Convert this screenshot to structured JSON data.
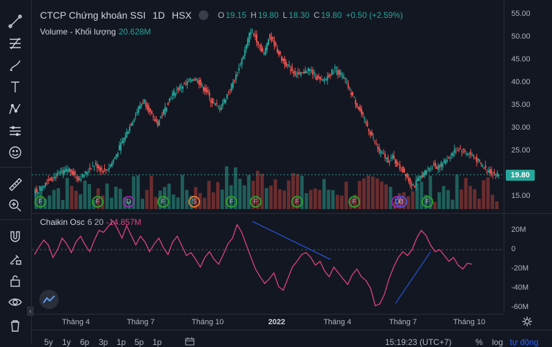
{
  "legend": {
    "title": "CTCP Chứng khoán SSI",
    "interval": "1D",
    "exchange": "HSX",
    "o_label": "O",
    "o_value": "19.15",
    "h_label": "H",
    "h_value": "19.80",
    "l_label": "L",
    "l_value": "18.30",
    "c_label": "C",
    "c_value": "19.80",
    "change": "+0.50 (+2.59%)"
  },
  "volume_legend": {
    "label": "Volume - Khối lượng",
    "value": "20.628M"
  },
  "osc_legend": {
    "label": "Chaikin Osc",
    "params": "6 20",
    "value": "-14.857M"
  },
  "price_axis": [
    "55.00",
    "50.00",
    "45.00",
    "40.00",
    "35.00",
    "30.00",
    "25.00",
    "20.00",
    "15.00"
  ],
  "last_price": "19.80",
  "osc_axis": [
    "20M",
    "0",
    "-20M",
    "-40M",
    "-60M"
  ],
  "time_axis": [
    {
      "label": "Tháng 4",
      "bold": false
    },
    {
      "label": "Tháng 7",
      "bold": false
    },
    {
      "label": "Tháng 10",
      "bold": false
    },
    {
      "label": "2022",
      "bold": true
    },
    {
      "label": "Tháng 4",
      "bold": false
    },
    {
      "label": "Tháng 7",
      "bold": false
    },
    {
      "label": "Tháng 10",
      "bold": false
    }
  ],
  "events": [
    {
      "type": "F"
    },
    {
      "type": "F"
    },
    {
      "type": "D"
    },
    {
      "type": "F"
    },
    {
      "type": "S"
    },
    {
      "type": "F"
    },
    {
      "type": "F"
    },
    {
      "type": "F"
    },
    {
      "type": "F"
    },
    {
      "type": "D"
    },
    {
      "type": "B"
    },
    {
      "type": "F"
    }
  ],
  "bottom_bar": {
    "ranges": [
      "5y",
      "1y",
      "6p",
      "3p",
      "1p",
      "5p",
      "1p"
    ],
    "time": "15:19:23 (UTC+7)",
    "percent": "%",
    "log": "log",
    "auto": "tự động"
  },
  "colors": {
    "up": "#26a69a",
    "down": "#ef5350",
    "osc": "#e0457b",
    "trend": "#2962ff"
  },
  "chart_data": {
    "type": "line",
    "description_series": "approximate SSI daily close, Jan 2021 - Oct 2022",
    "series": [
      {
        "name": "Close",
        "values": [
          16.5,
          17.5,
          18.5,
          19,
          19.5,
          20,
          20.5,
          21,
          20,
          19,
          19.5,
          20.5,
          21.5,
          22,
          21,
          20.5,
          21.5,
          23,
          25,
          27,
          29,
          31,
          33,
          35,
          36,
          34,
          32,
          31,
          33,
          35,
          37,
          38,
          39,
          39.5,
          40,
          41,
          40.5,
          39,
          38,
          36,
          35,
          34.5,
          36,
          38,
          40,
          42,
          45,
          48,
          51.5,
          50,
          48,
          46,
          50,
          49,
          47,
          45,
          44,
          43,
          42,
          41.5,
          42,
          43,
          42,
          41,
          40,
          41,
          42,
          43,
          42,
          41,
          39,
          37,
          35,
          33,
          31,
          29,
          27,
          25,
          24,
          23,
          23.5,
          22,
          21,
          20,
          18,
          17.5,
          19,
          20,
          21,
          22,
          21.5,
          22,
          23,
          24,
          25,
          25.5,
          25,
          24.5,
          24,
          23,
          22,
          21,
          20.5,
          20,
          19.8
        ]
      }
    ],
    "ylim": [
      13,
      56
    ]
  },
  "osc_data": {
    "values": [
      -5,
      3,
      10,
      5,
      -8,
      0,
      12,
      6,
      -3,
      8,
      14,
      5,
      -2,
      10,
      20,
      18,
      24,
      30,
      22,
      12,
      25,
      15,
      5,
      14,
      8,
      -2,
      6,
      12,
      2,
      -5,
      8,
      14,
      4,
      -6,
      -3,
      -10,
      -18,
      -8,
      -2,
      -10,
      -15,
      -5,
      6,
      12,
      26,
      18,
      5,
      -8,
      -20,
      -28,
      -35,
      -30,
      -24,
      -38,
      -42,
      -30,
      -18,
      -12,
      -5,
      -3,
      -8,
      -16,
      -12,
      -22,
      -28,
      -18,
      -24,
      -30,
      -36,
      -26,
      -20,
      -28,
      -32,
      -40,
      -58,
      -56,
      -46,
      -30,
      -18,
      -8,
      -2,
      -6,
      0,
      12,
      20,
      15,
      5,
      -2,
      0,
      -6,
      -12,
      -8,
      -16,
      -20,
      -14,
      -15
    ],
    "ylim": [
      -66,
      30
    ]
  }
}
